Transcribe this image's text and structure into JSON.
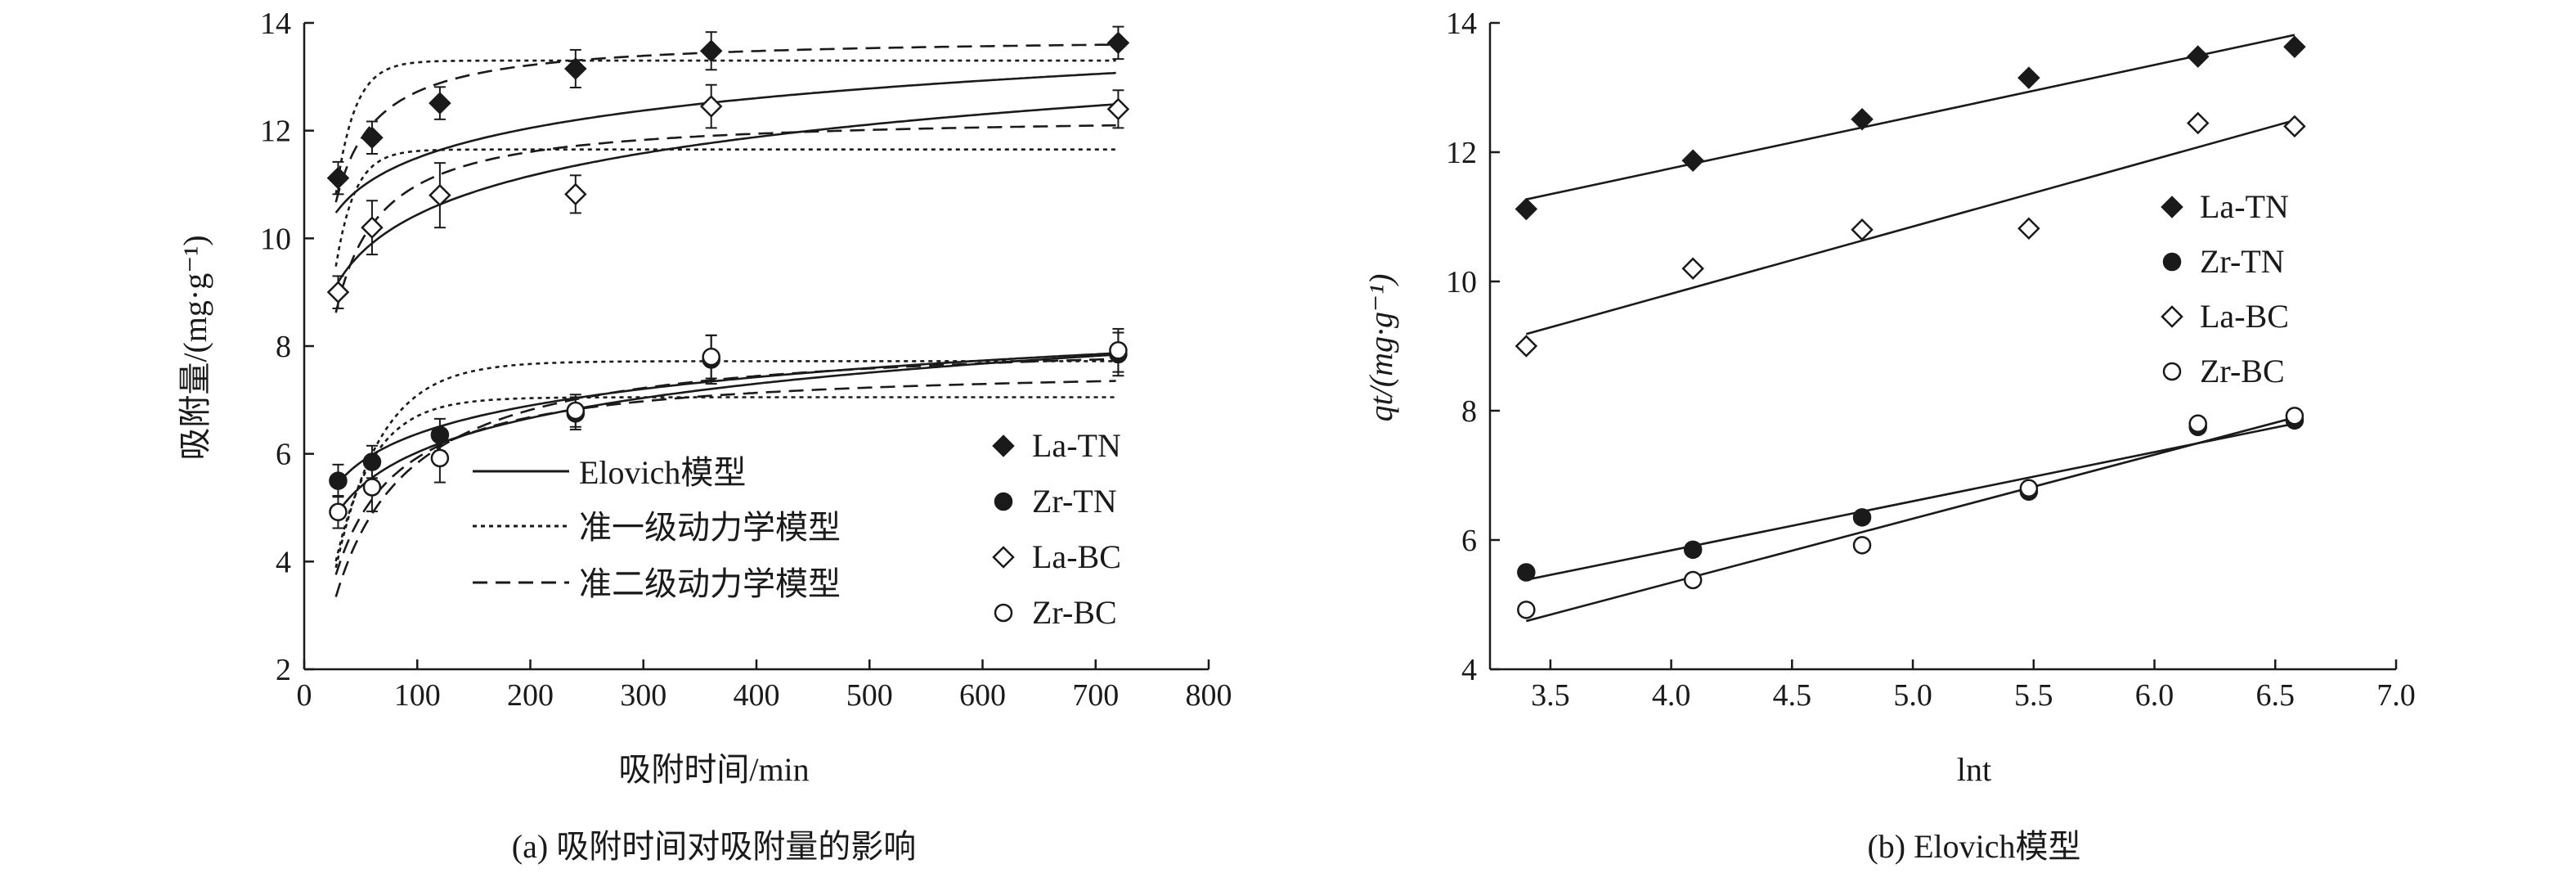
{
  "chart_data": [
    {
      "type": "scatter",
      "caption": "(a) 吸附时间对吸附量的影响",
      "xlabel": "吸附时间/min",
      "ylabel": "吸附量/(mg·g⁻¹)",
      "xlim": [
        0,
        800
      ],
      "ylim": [
        2,
        14
      ],
      "xticks": [
        0,
        100,
        200,
        300,
        400,
        500,
        600,
        700,
        800
      ],
      "yticks": [
        2,
        4,
        6,
        8,
        10,
        12,
        14
      ],
      "grid": false,
      "legend_position": "bottom-right",
      "x": [
        30,
        60,
        120,
        240,
        360,
        720
      ],
      "series": [
        {
          "name": "La-TN",
          "marker": "filled-diamond",
          "values": [
            11.12,
            11.87,
            12.51,
            13.15,
            13.48,
            13.63
          ],
          "errors": [
            0.3,
            0.3,
            0.3,
            0.35,
            0.35,
            0.3
          ]
        },
        {
          "name": "Zr-TN",
          "marker": "filled-circle",
          "values": [
            5.5,
            5.85,
            6.35,
            6.75,
            7.75,
            7.85
          ],
          "errors": [
            0.3,
            0.3,
            0.3,
            0.3,
            0.45,
            0.4
          ]
        },
        {
          "name": "La-BC",
          "marker": "open-diamond",
          "values": [
            9.0,
            10.2,
            10.8,
            10.82,
            12.45,
            12.4
          ],
          "errors": [
            0.3,
            0.5,
            0.6,
            0.35,
            0.4,
            0.35
          ]
        },
        {
          "name": "Zr-BC",
          "marker": "open-circle",
          "values": [
            4.92,
            5.38,
            5.92,
            6.8,
            7.8,
            7.92
          ],
          "errors": [
            0.3,
            0.45,
            0.45,
            0.3,
            0.4,
            0.4
          ]
        }
      ],
      "model_legend": [
        {
          "label": "Elovich模型",
          "style": "solid"
        },
        {
          "label": "准一级动力学模型",
          "style": "dotted"
        },
        {
          "label": "准二级动力学模型",
          "style": "dashed"
        }
      ],
      "model_params": {
        "elovich": {
          "La-TN": [
            7.81,
            0.8
          ],
          "Zr-TN": [
            2.87,
            0.76
          ],
          "La-BC": [
            5.65,
            1.04
          ],
          "Zr-BC": [
            1.79,
            0.92
          ]
        },
        "pfo": {
          "La-TN": [
            13.3,
            0.06
          ],
          "Zr-TN": [
            7.72,
            0.025
          ],
          "La-BC": [
            11.65,
            0.06
          ],
          "Zr-BC": [
            7.05,
            0.03
          ]
        },
        "pso": {
          "La-TN": [
            13.75,
            0.009
          ],
          "Zr-TN": [
            8.2,
            0.003
          ],
          "La-BC": [
            12.3,
            0.0068
          ],
          "Zr-BC": [
            7.65,
            0.0045
          ]
        }
      }
    },
    {
      "type": "scatter",
      "caption": "(b) Elovich模型",
      "xlabel": "lnt",
      "ylabel": "qt/(mg·g⁻¹)",
      "xlim": [
        3.25,
        7.0
      ],
      "ylim": [
        4,
        14
      ],
      "xticks": [
        3.5,
        4.0,
        4.5,
        5.0,
        5.5,
        6.0,
        6.5,
        7.0
      ],
      "yticks": [
        4,
        6,
        8,
        10,
        12,
        14
      ],
      "grid": false,
      "legend_position": "right",
      "x": [
        3.4,
        4.09,
        4.79,
        5.48,
        6.18,
        6.58
      ],
      "series": [
        {
          "name": "La-TN",
          "marker": "filled-diamond",
          "values": [
            11.12,
            11.87,
            12.51,
            13.15,
            13.48,
            13.63
          ],
          "fit": {
            "slope": 0.8,
            "intercept": 8.55
          }
        },
        {
          "name": "Zr-TN",
          "marker": "filled-circle",
          "values": [
            5.5,
            5.85,
            6.35,
            6.75,
            7.75,
            7.85
          ],
          "fit": {
            "slope": 0.76,
            "intercept": 2.8
          }
        },
        {
          "name": "La-BC",
          "marker": "open-diamond",
          "values": [
            9.0,
            10.2,
            10.8,
            10.82,
            12.45,
            12.4
          ],
          "fit": {
            "slope": 1.04,
            "intercept": 5.65
          }
        },
        {
          "name": "Zr-BC",
          "marker": "open-circle",
          "values": [
            4.92,
            5.38,
            5.92,
            6.8,
            7.8,
            7.92
          ],
          "fit": {
            "slope": 0.99,
            "intercept": 1.38
          }
        }
      ]
    }
  ]
}
